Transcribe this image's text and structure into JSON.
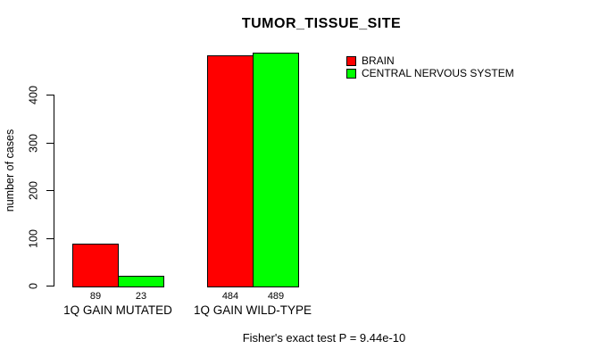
{
  "chart_data": {
    "type": "bar",
    "title": "TUMOR_TISSUE_SITE",
    "ylabel": "number of cases",
    "xlabel": "",
    "categories": [
      "1Q GAIN MUTATED",
      "1Q GAIN WILD-TYPE"
    ],
    "series": [
      {
        "name": "BRAIN",
        "color": "#ff0000",
        "values": [
          89,
          484
        ]
      },
      {
        "name": "CENTRAL NERVOUS SYSTEM",
        "color": "#00ff00",
        "values": [
          23,
          489
        ]
      }
    ],
    "ylim": [
      0,
      400
    ],
    "yticks": [
      0,
      100,
      200,
      300,
      400
    ],
    "grid": false,
    "show_bar_values": true,
    "legend_position": "top-right",
    "annotation": "Fisher's exact test P = 9.44e-10",
    "colors": {
      "background": "#ffffff",
      "axis": "#000000",
      "bar_border": "#000000"
    }
  }
}
